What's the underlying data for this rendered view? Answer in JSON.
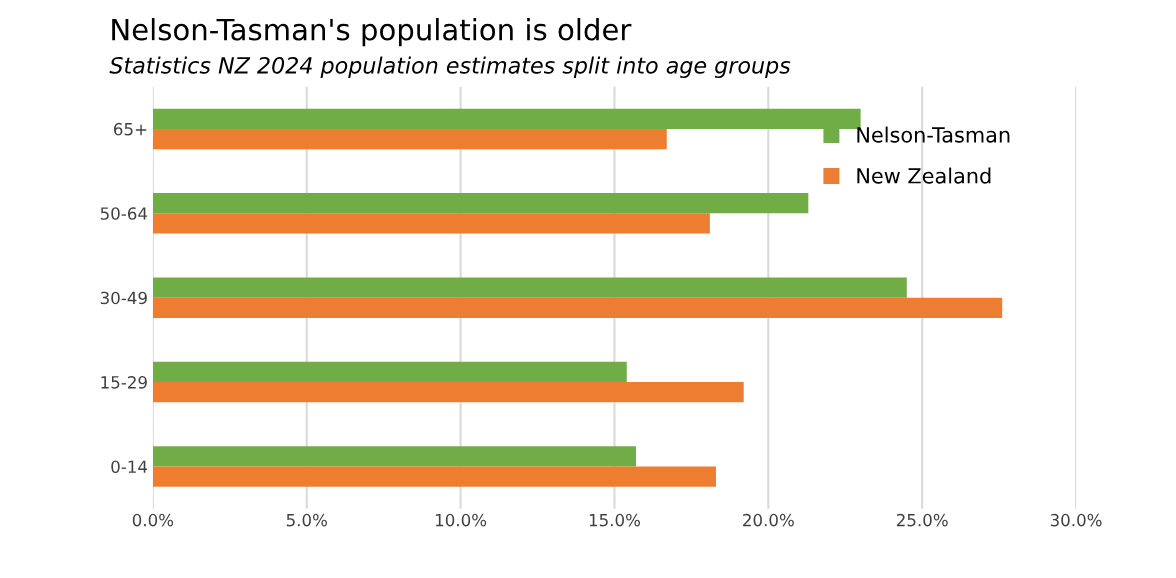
{
  "chart_data": {
    "type": "bar",
    "orientation": "horizontal",
    "title": "Nelson-Tasman's population is older",
    "subtitle": "Statistics NZ 2024 population estimates split into age groups",
    "categories": [
      "65+",
      "50-64",
      "30-49",
      "15-29",
      "0-14"
    ],
    "series": [
      {
        "name": "Nelson-Tasman",
        "color": "#70ad47",
        "values": [
          23.0,
          21.3,
          24.5,
          15.4,
          15.7
        ]
      },
      {
        "name": "New Zealand",
        "color": "#ed7d31",
        "values": [
          16.7,
          18.1,
          27.6,
          19.2,
          18.3
        ]
      }
    ],
    "xlim": [
      0,
      30
    ],
    "xticks": [
      {
        "value": 0,
        "label": "0.0%"
      },
      {
        "value": 5,
        "label": "5.0%"
      },
      {
        "value": 10,
        "label": "10.0%"
      },
      {
        "value": 15,
        "label": "15.0%"
      },
      {
        "value": 20,
        "label": "20.0%"
      },
      {
        "value": 25,
        "label": "25.0%"
      },
      {
        "value": 30,
        "label": "30.0%"
      }
    ],
    "grid": "x",
    "legend": "top right"
  }
}
